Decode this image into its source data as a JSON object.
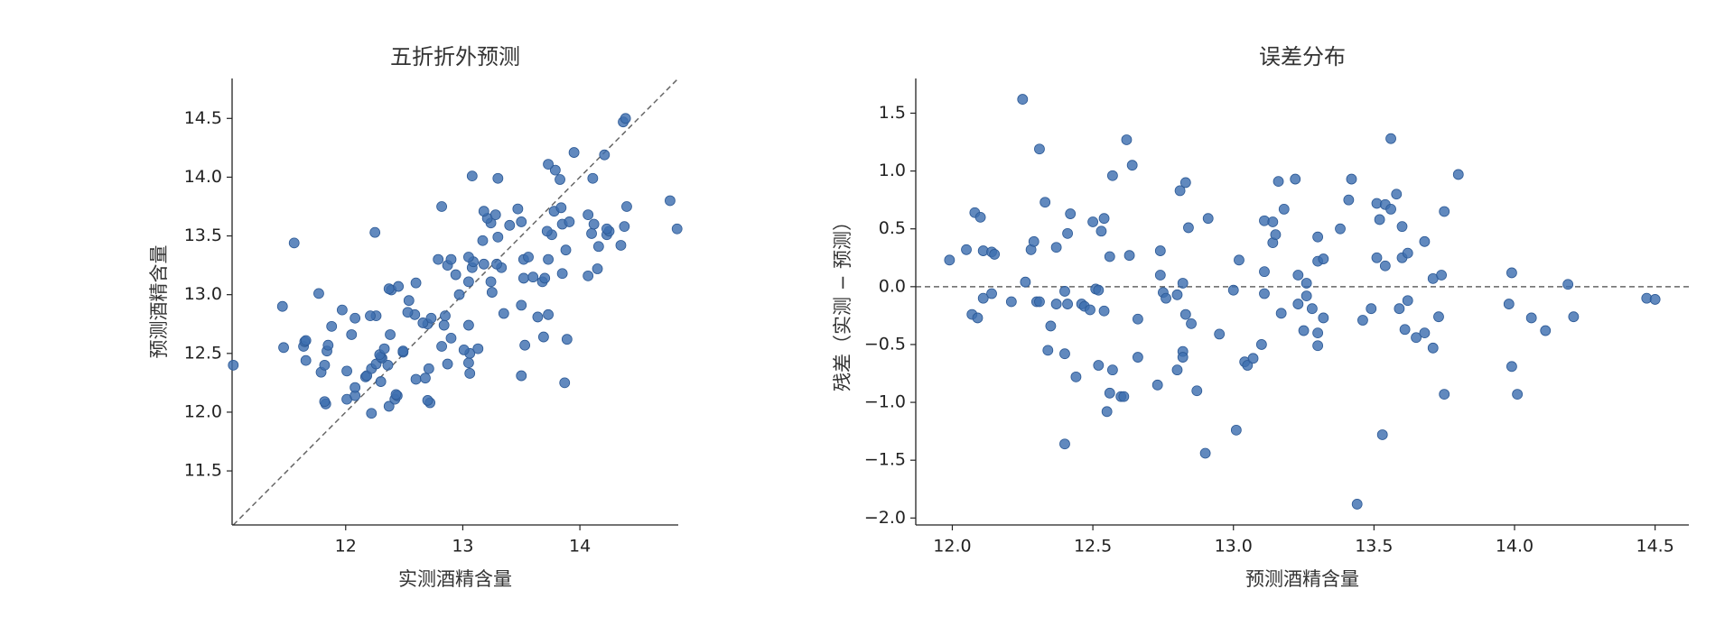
{
  "chart_data": [
    {
      "type": "scatter",
      "title": "五折折外预测",
      "x_label": "实测酒精含量",
      "y_label": "预测酒精含量",
      "color": "#3e6fb0",
      "xlim": [
        11.03,
        14.84
      ],
      "ylim": [
        11.04,
        14.84
      ],
      "xticks": [
        12,
        13,
        14
      ],
      "yticks": [
        11.5,
        {
          "value": 12,
          "label": "12.0"
        },
        12.5,
        {
          "value": 13,
          "label": "13.0"
        },
        13.5,
        {
          "value": 14,
          "label": "14.0"
        },
        14.5
      ],
      "x": [
        12.22,
        12.37,
        11.83,
        12.72,
        12.7,
        11.82,
        12.01,
        12.42,
        12.44,
        12.43,
        12.08,
        12.08,
        13.87,
        12.3,
        12.6,
        12.68,
        12.17,
        12.18,
        13.5,
        13.06,
        12.01,
        11.79,
        12.22,
        12.71,
        12.36,
        11.82,
        11.04,
        12.87,
        12.26,
        13.05,
        11.66,
        12.31,
        12.3,
        12.29,
        13.06,
        12.49,
        12.49,
        11.84,
        13.01,
        13.13,
        12.33,
        11.47,
        11.64,
        12.82,
        11.85,
        13.53,
        11.65,
        11.66,
        13.89,
        12.9,
        13.69,
        12.38,
        12.05,
        11.88,
        12.84,
        13.05,
        12.7,
        12.66,
        12.73,
        12.08,
        13.64,
        12.26,
        12.21,
        12.85,
        12.59,
        13.73,
        13.35,
        12.53,
        11.97,
        11.46,
        13.5,
        12.54,
        12.97,
        11.77,
        13.25,
        12.39,
        12.37,
        12.45,
        12.6,
        13.68,
        13.24,
        13.05,
        13.7,
        13.52,
        13.6,
        14.07,
        12.94,
        13.85,
        14.15,
        13.33,
        13.08,
        12.87,
        13.29,
        13.18,
        13.09,
        13.52,
        13.73,
        12.9,
        12.79,
        13.05,
        13.56,
        13.88,
        14.16,
        14.35,
        11.56,
        13.17,
        13.3,
        13.76,
        14.23,
        14.1,
        12.25,
        13.72,
        14.25,
        14.83,
        14.23,
        14.38,
        13.4,
        13.85,
        14.12,
        13.24,
        13.5,
        13.91,
        13.21,
        14.07,
        13.28,
        13.18,
        13.78,
        13.47,
        13.84,
        14.4,
        12.82,
        14.77,
        14.11,
        13.83,
        13.3,
        13.08,
        13.79,
        13.73,
        14.21,
        13.95,
        14.37,
        14.39
      ],
      "y": [
        11.99,
        12.05,
        12.07,
        12.08,
        12.1,
        12.09,
        12.11,
        12.11,
        12.14,
        12.15,
        12.14,
        12.21,
        12.25,
        12.26,
        12.28,
        12.29,
        12.3,
        12.31,
        12.31,
        12.33,
        12.35,
        12.34,
        12.37,
        12.37,
        12.4,
        12.4,
        12.4,
        12.41,
        12.41,
        12.42,
        12.44,
        12.46,
        12.47,
        12.49,
        12.5,
        12.51,
        12.52,
        12.52,
        12.53,
        12.54,
        12.54,
        12.55,
        12.56,
        12.56,
        12.57,
        12.57,
        12.6,
        12.61,
        12.62,
        12.63,
        12.64,
        12.66,
        12.66,
        12.73,
        12.74,
        12.74,
        12.75,
        12.76,
        12.8,
        12.8,
        12.81,
        12.82,
        12.82,
        12.82,
        12.83,
        12.83,
        12.84,
        12.85,
        12.87,
        12.9,
        12.91,
        12.95,
        13.0,
        13.01,
        13.02,
        13.04,
        13.05,
        13.07,
        13.1,
        13.11,
        13.11,
        13.11,
        13.14,
        13.14,
        13.15,
        13.16,
        13.17,
        13.18,
        13.22,
        13.23,
        13.23,
        13.25,
        13.26,
        13.26,
        13.28,
        13.3,
        13.3,
        13.3,
        13.3,
        13.32,
        13.32,
        13.38,
        13.41,
        13.42,
        13.44,
        13.46,
        13.49,
        13.51,
        13.51,
        13.52,
        13.53,
        13.54,
        13.54,
        13.56,
        13.56,
        13.58,
        13.59,
        13.6,
        13.6,
        13.61,
        13.62,
        13.62,
        13.65,
        13.68,
        13.68,
        13.71,
        13.71,
        13.73,
        13.74,
        13.75,
        13.75,
        13.8,
        13.99,
        13.98,
        13.99,
        14.01,
        14.06,
        14.11,
        14.19,
        14.21,
        14.47,
        14.5
      ]
    },
    {
      "type": "scatter",
      "title": "误差分布",
      "x_label": "预测酒精含量",
      "y_label": "残差（实测 − 预测）",
      "color": "#3e6fb0",
      "xlim": [
        11.87,
        14.62
      ],
      "ylim": [
        -2.06,
        1.8
      ],
      "xticks": [
        {
          "value": 12,
          "label": "12.0"
        },
        12.5,
        {
          "value": 13,
          "label": "13.0"
        },
        13.5,
        {
          "value": 14,
          "label": "14.0"
        },
        14.5
      ],
      "yticks": [
        {
          "value": -2,
          "label": "−2.0"
        },
        {
          "value": -1.5,
          "label": "−1.5"
        },
        {
          "value": -1,
          "label": "−1.0"
        },
        {
          "value": -0.5,
          "label": "−0.5"
        },
        {
          "value": 0,
          "label": "0.0"
        },
        0.5,
        {
          "value": 1,
          "label": "1.0"
        },
        1.5
      ],
      "x": [
        11.99,
        12.05,
        12.07,
        12.08,
        12.1,
        12.09,
        12.11,
        12.11,
        12.14,
        12.15,
        12.14,
        12.21,
        12.25,
        12.26,
        12.28,
        12.29,
        12.3,
        12.31,
        12.31,
        12.33,
        12.35,
        12.34,
        12.37,
        12.37,
        12.4,
        12.4,
        12.4,
        12.41,
        12.41,
        12.42,
        12.44,
        12.46,
        12.47,
        12.49,
        12.5,
        12.51,
        12.52,
        12.52,
        12.53,
        12.54,
        12.54,
        12.55,
        12.56,
        12.56,
        12.57,
        12.57,
        12.6,
        12.61,
        12.62,
        12.63,
        12.64,
        12.66,
        12.66,
        12.73,
        12.74,
        12.74,
        12.75,
        12.76,
        12.8,
        12.8,
        12.81,
        12.82,
        12.82,
        12.82,
        12.83,
        12.83,
        12.84,
        12.85,
        12.87,
        12.9,
        12.91,
        12.95,
        13.0,
        13.01,
        13.02,
        13.04,
        13.05,
        13.07,
        13.1,
        13.11,
        13.11,
        13.11,
        13.14,
        13.14,
        13.15,
        13.16,
        13.17,
        13.18,
        13.22,
        13.23,
        13.23,
        13.25,
        13.26,
        13.26,
        13.28,
        13.3,
        13.3,
        13.3,
        13.3,
        13.32,
        13.32,
        13.38,
        13.41,
        13.42,
        13.44,
        13.46,
        13.49,
        13.51,
        13.51,
        13.52,
        13.53,
        13.54,
        13.54,
        13.56,
        13.56,
        13.58,
        13.59,
        13.6,
        13.6,
        13.61,
        13.62,
        13.62,
        13.65,
        13.68,
        13.68,
        13.71,
        13.71,
        13.73,
        13.74,
        13.75,
        13.75,
        13.8,
        13.99,
        13.98,
        13.99,
        14.01,
        14.06,
        14.11,
        14.19,
        14.21,
        14.47,
        14.5
      ],
      "y": [
        0.23,
        0.32,
        -0.24,
        0.64,
        0.6,
        -0.27,
        -0.1,
        0.31,
        0.3,
        0.28,
        -0.06,
        -0.13,
        1.62,
        0.04,
        0.32,
        0.39,
        -0.13,
        -0.13,
        1.19,
        0.73,
        -0.34,
        -0.55,
        -0.15,
        0.34,
        -0.04,
        -0.58,
        -1.36,
        0.46,
        -0.15,
        0.63,
        -0.78,
        -0.15,
        -0.17,
        -0.2,
        0.56,
        -0.02,
        -0.03,
        -0.68,
        0.48,
        0.59,
        -0.21,
        -1.08,
        -0.92,
        0.26,
        -0.72,
        0.96,
        -0.95,
        -0.95,
        1.27,
        0.27,
        1.05,
        -0.28,
        -0.61,
        -0.85,
        0.1,
        0.31,
        -0.05,
        -0.1,
        -0.07,
        -0.72,
        0.83,
        -0.56,
        -0.61,
        0.03,
        -0.24,
        0.9,
        0.51,
        -0.32,
        -0.9,
        -1.44,
        0.59,
        -0.41,
        -0.03,
        -1.24,
        0.23,
        -0.65,
        -0.68,
        -0.62,
        -0.5,
        0.57,
        0.13,
        -0.06,
        0.56,
        0.38,
        0.45,
        0.91,
        -0.23,
        0.67,
        0.93,
        0.1,
        -0.15,
        -0.38,
        0.03,
        -0.08,
        -0.19,
        0.22,
        0.43,
        -0.4,
        -0.51,
        -0.27,
        0.24,
        0.5,
        0.75,
        0.93,
        -1.88,
        -0.29,
        -0.19,
        0.25,
        0.72,
        0.58,
        -1.28,
        0.18,
        0.71,
        1.28,
        0.67,
        0.8,
        -0.19,
        0.25,
        0.52,
        -0.37,
        -0.12,
        0.29,
        -0.44,
        0.39,
        -0.4,
        -0.53,
        0.07,
        -0.26,
        0.1,
        0.65,
        -0.93,
        0.97,
        0.12,
        -0.15,
        -0.69,
        -0.93,
        -0.27,
        -0.38,
        0.02,
        -0.26,
        -0.1,
        -0.11
      ]
    }
  ]
}
